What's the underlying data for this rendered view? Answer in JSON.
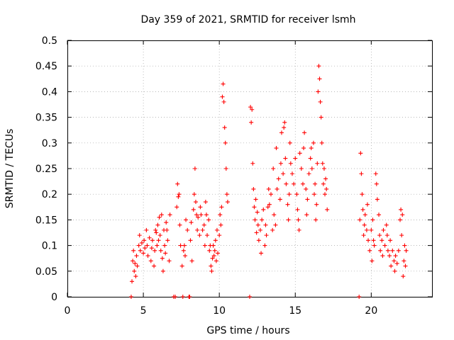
{
  "chart_data": {
    "type": "scatter",
    "title": "Day 359 of 2021, SRMTID for receiver lsmh",
    "xlabel": "GPS time / hours",
    "ylabel": "SRMTID / TECUs",
    "xlim": [
      0,
      24
    ],
    "ylim": [
      0,
      0.5
    ],
    "xticks": [
      0,
      5,
      10,
      15,
      20
    ],
    "yticks": [
      0,
      0.05,
      0.1,
      0.15,
      0.2,
      0.25,
      0.3,
      0.35,
      0.4,
      0.45,
      0.5
    ],
    "xtick_labels": [
      "0",
      "5",
      "10",
      "15",
      "20"
    ],
    "ytick_labels": [
      "0",
      "0.05",
      "0.1",
      "0.15",
      "0.2",
      "0.25",
      "0.3",
      "0.35",
      "0.4",
      "0.45",
      "0.5"
    ],
    "grid": true,
    "marker": "+",
    "color": "#ff0000",
    "series": [
      {
        "name": "SRMTID",
        "points": [
          [
            4.2,
            0.0
          ],
          [
            4.25,
            0.03
          ],
          [
            4.3,
            0.07
          ],
          [
            4.35,
            0.09
          ],
          [
            4.4,
            0.05
          ],
          [
            4.45,
            0.065
          ],
          [
            4.5,
            0.04
          ],
          [
            4.55,
            0.08
          ],
          [
            4.6,
            0.06
          ],
          [
            4.7,
            0.1
          ],
          [
            4.75,
            0.12
          ],
          [
            4.8,
            0.09
          ],
          [
            4.9,
            0.105
          ],
          [
            5.0,
            0.085
          ],
          [
            5.05,
            0.11
          ],
          [
            5.1,
            0.095
          ],
          [
            5.2,
            0.13
          ],
          [
            5.25,
            0.1
          ],
          [
            5.3,
            0.08
          ],
          [
            5.4,
            0.115
          ],
          [
            5.5,
            0.07
          ],
          [
            5.55,
            0.095
          ],
          [
            5.6,
            0.11
          ],
          [
            5.7,
            0.06
          ],
          [
            5.75,
            0.09
          ],
          [
            5.8,
            0.13
          ],
          [
            5.85,
            0.125
          ],
          [
            5.9,
            0.1
          ],
          [
            5.95,
            0.14
          ],
          [
            6.0,
            0.11
          ],
          [
            6.05,
            0.155
          ],
          [
            6.1,
            0.12
          ],
          [
            6.15,
            0.09
          ],
          [
            6.2,
            0.16
          ],
          [
            6.25,
            0.075
          ],
          [
            6.3,
            0.05
          ],
          [
            6.35,
            0.13
          ],
          [
            6.4,
            0.1
          ],
          [
            6.45,
            0.085
          ],
          [
            6.5,
            0.145
          ],
          [
            6.55,
            0.13
          ],
          [
            6.6,
            0.11
          ],
          [
            6.7,
            0.07
          ],
          [
            6.75,
            0.16
          ],
          [
            7.0,
            0.0
          ],
          [
            7.1,
            0.0
          ],
          [
            7.2,
            0.175
          ],
          [
            7.25,
            0.22
          ],
          [
            7.3,
            0.195
          ],
          [
            7.35,
            0.2
          ],
          [
            7.4,
            0.14
          ],
          [
            7.45,
            0.1
          ],
          [
            7.55,
            0.06
          ],
          [
            7.6,
            0.0
          ],
          [
            7.65,
            0.09
          ],
          [
            7.7,
            0.1
          ],
          [
            7.75,
            0.08
          ],
          [
            7.8,
            0.15
          ],
          [
            7.9,
            0.13
          ],
          [
            8.0,
            0.0
          ],
          [
            8.05,
            0.0
          ],
          [
            8.1,
            0.11
          ],
          [
            8.15,
            0.145
          ],
          [
            8.2,
            0.07
          ],
          [
            8.3,
            0.17
          ],
          [
            8.35,
            0.2
          ],
          [
            8.4,
            0.25
          ],
          [
            8.45,
            0.185
          ],
          [
            8.5,
            0.16
          ],
          [
            8.55,
            0.13
          ],
          [
            8.6,
            0.155
          ],
          [
            8.7,
            0.12
          ],
          [
            8.75,
            0.175
          ],
          [
            8.8,
            0.16
          ],
          [
            8.9,
            0.13
          ],
          [
            9.0,
            0.14
          ],
          [
            9.05,
            0.1
          ],
          [
            9.1,
            0.185
          ],
          [
            9.15,
            0.16
          ],
          [
            9.2,
            0.12
          ],
          [
            9.3,
            0.15
          ],
          [
            9.35,
            0.09
          ],
          [
            9.4,
            0.1
          ],
          [
            9.45,
            0.06
          ],
          [
            9.5,
            0.05
          ],
          [
            9.55,
            0.075
          ],
          [
            9.6,
            0.1
          ],
          [
            9.65,
            0.08
          ],
          [
            9.7,
            0.09
          ],
          [
            9.75,
            0.11
          ],
          [
            9.8,
            0.07
          ],
          [
            9.85,
            0.13
          ],
          [
            9.9,
            0.085
          ],
          [
            10.0,
            0.12
          ],
          [
            10.05,
            0.16
          ],
          [
            10.1,
            0.14
          ],
          [
            10.15,
            0.175
          ],
          [
            10.2,
            0.39
          ],
          [
            10.25,
            0.415
          ],
          [
            10.3,
            0.38
          ],
          [
            10.35,
            0.33
          ],
          [
            10.4,
            0.3
          ],
          [
            10.45,
            0.25
          ],
          [
            10.5,
            0.2
          ],
          [
            10.55,
            0.185
          ],
          [
            12.0,
            0.0
          ],
          [
            12.05,
            0.37
          ],
          [
            12.1,
            0.34
          ],
          [
            12.15,
            0.365
          ],
          [
            12.2,
            0.26
          ],
          [
            12.25,
            0.21
          ],
          [
            12.3,
            0.175
          ],
          [
            12.35,
            0.15
          ],
          [
            12.4,
            0.19
          ],
          [
            12.45,
            0.125
          ],
          [
            12.5,
            0.165
          ],
          [
            12.55,
            0.14
          ],
          [
            12.6,
            0.11
          ],
          [
            12.7,
            0.13
          ],
          [
            12.75,
            0.085
          ],
          [
            12.8,
            0.15
          ],
          [
            12.9,
            0.17
          ],
          [
            13.0,
            0.1
          ],
          [
            13.05,
            0.14
          ],
          [
            13.1,
            0.12
          ],
          [
            13.2,
            0.175
          ],
          [
            13.25,
            0.21
          ],
          [
            13.3,
            0.18
          ],
          [
            13.4,
            0.2
          ],
          [
            13.5,
            0.13
          ],
          [
            13.55,
            0.25
          ],
          [
            13.6,
            0.16
          ],
          [
            13.7,
            0.14
          ],
          [
            13.75,
            0.29
          ],
          [
            13.8,
            0.21
          ],
          [
            13.9,
            0.23
          ],
          [
            14.0,
            0.19
          ],
          [
            14.05,
            0.26
          ],
          [
            14.1,
            0.32
          ],
          [
            14.2,
            0.24
          ],
          [
            14.25,
            0.33
          ],
          [
            14.3,
            0.34
          ],
          [
            14.35,
            0.27
          ],
          [
            14.4,
            0.22
          ],
          [
            14.5,
            0.18
          ],
          [
            14.55,
            0.15
          ],
          [
            14.6,
            0.2
          ],
          [
            14.65,
            0.3
          ],
          [
            14.7,
            0.26
          ],
          [
            14.8,
            0.24
          ],
          [
            14.9,
            0.22
          ],
          [
            15.0,
            0.27
          ],
          [
            15.1,
            0.2
          ],
          [
            15.15,
            0.17
          ],
          [
            15.2,
            0.15
          ],
          [
            15.25,
            0.13
          ],
          [
            15.3,
            0.28
          ],
          [
            15.4,
            0.25
          ],
          [
            15.5,
            0.22
          ],
          [
            15.55,
            0.29
          ],
          [
            15.6,
            0.32
          ],
          [
            15.7,
            0.21
          ],
          [
            15.75,
            0.16
          ],
          [
            15.8,
            0.19
          ],
          [
            15.9,
            0.24
          ],
          [
            16.0,
            0.27
          ],
          [
            16.05,
            0.29
          ],
          [
            16.1,
            0.25
          ],
          [
            16.2,
            0.3
          ],
          [
            16.25,
            0.2
          ],
          [
            16.3,
            0.22
          ],
          [
            16.35,
            0.15
          ],
          [
            16.4,
            0.18
          ],
          [
            16.45,
            0.26
          ],
          [
            16.5,
            0.4
          ],
          [
            16.55,
            0.45
          ],
          [
            16.6,
            0.425
          ],
          [
            16.65,
            0.38
          ],
          [
            16.7,
            0.35
          ],
          [
            16.75,
            0.3
          ],
          [
            16.8,
            0.26
          ],
          [
            16.85,
            0.22
          ],
          [
            16.9,
            0.25
          ],
          [
            16.95,
            0.2
          ],
          [
            17.0,
            0.23
          ],
          [
            17.05,
            0.21
          ],
          [
            17.1,
            0.17
          ],
          [
            19.2,
            0.0
          ],
          [
            19.25,
            0.15
          ],
          [
            19.3,
            0.28
          ],
          [
            19.35,
            0.24
          ],
          [
            19.4,
            0.2
          ],
          [
            19.45,
            0.17
          ],
          [
            19.5,
            0.12
          ],
          [
            19.55,
            0.14
          ],
          [
            19.6,
            0.16
          ],
          [
            19.7,
            0.13
          ],
          [
            19.75,
            0.18
          ],
          [
            19.8,
            0.11
          ],
          [
            19.9,
            0.09
          ],
          [
            20.0,
            0.13
          ],
          [
            20.05,
            0.07
          ],
          [
            20.1,
            0.15
          ],
          [
            20.15,
            0.11
          ],
          [
            20.2,
            0.1
          ],
          [
            20.3,
            0.24
          ],
          [
            20.35,
            0.22
          ],
          [
            20.4,
            0.19
          ],
          [
            20.5,
            0.16
          ],
          [
            20.55,
            0.12
          ],
          [
            20.6,
            0.09
          ],
          [
            20.7,
            0.11
          ],
          [
            20.75,
            0.08
          ],
          [
            20.8,
            0.13
          ],
          [
            20.9,
            0.1
          ],
          [
            21.0,
            0.14
          ],
          [
            21.05,
            0.12
          ],
          [
            21.1,
            0.09
          ],
          [
            21.2,
            0.08
          ],
          [
            21.25,
            0.11
          ],
          [
            21.3,
            0.06
          ],
          [
            21.4,
            0.09
          ],
          [
            21.5,
            0.07
          ],
          [
            21.55,
            0.05
          ],
          [
            21.6,
            0.08
          ],
          [
            21.7,
            0.065
          ],
          [
            21.8,
            0.09
          ],
          [
            21.9,
            0.15
          ],
          [
            21.95,
            0.17
          ],
          [
            22.0,
            0.12
          ],
          [
            22.05,
            0.16
          ],
          [
            22.1,
            0.04
          ],
          [
            22.15,
            0.07
          ],
          [
            22.2,
            0.1
          ],
          [
            22.25,
            0.06
          ],
          [
            22.3,
            0.09
          ]
        ]
      }
    ]
  }
}
